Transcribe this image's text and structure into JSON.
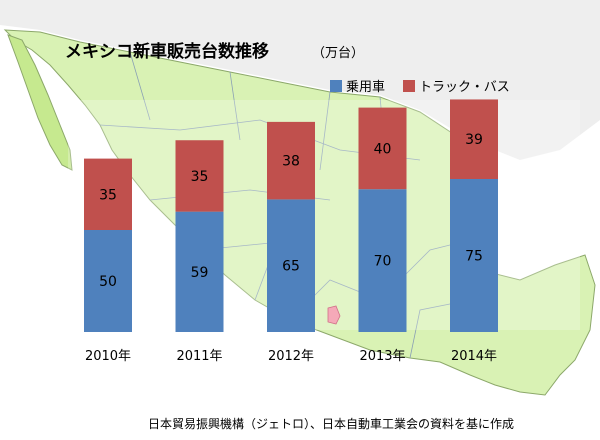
{
  "header": {
    "title": "メキシコ新車販売台数推移",
    "unit": "（万台）"
  },
  "source": "日本貿易振興機構（ジェトロ）、日本自動車工業会の資料を基に作成",
  "colors": {
    "passenger": "#4f81bd",
    "truck_bus": "#c0504d",
    "land": "#d9f2b4",
    "land_dark": "#c6e98f",
    "land_border": "#8ca86a",
    "us_land": "#eeeeee",
    "water": "#ffffff",
    "state_lines": "#8aa0b4",
    "mexico_city": "#f28ca0"
  },
  "chart_data": {
    "type": "bar",
    "stacked": true,
    "title": "メキシコ新車販売台数推移",
    "unit": "（万台）",
    "categories": [
      "2010年",
      "2011年",
      "2012年",
      "2013年",
      "2014年"
    ],
    "series": [
      {
        "name": "乗用車",
        "color": "#4f81bd",
        "values": [
          50,
          59,
          65,
          70,
          75
        ]
      },
      {
        "name": "トラック・バス",
        "color": "#c0504d",
        "values": [
          35,
          35,
          38,
          40,
          39
        ]
      }
    ],
    "legend": "top-right",
    "ylim": [
      0,
      120
    ],
    "grid": false
  }
}
